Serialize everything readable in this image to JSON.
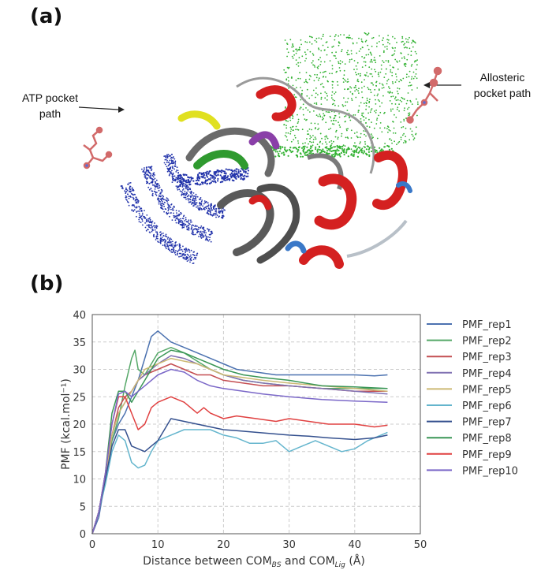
{
  "panel_a": {
    "label": "(a)",
    "annotations": {
      "atp_line1": "ATP pocket",
      "atp_line2": "path",
      "allo_line1": "Allosteric",
      "allo_line2": "pocket path"
    },
    "colors": {
      "atp_path": "#2233aa",
      "allosteric_path": "#33b233",
      "helix": "#d42020",
      "coil": "#9a9a9a"
    }
  },
  "panel_b": {
    "label": "(b)"
  },
  "chart_data": {
    "type": "line",
    "xlabel_parts": [
      "Distance between COM",
      "BS",
      " and COM",
      "Lig",
      " (Å)"
    ],
    "ylabel": "PMF (kcal.mol⁻¹)",
    "xlim": [
      0,
      50
    ],
    "ylim": [
      0,
      40
    ],
    "xticks": [
      "0",
      "10",
      "20",
      "30",
      "40",
      "50"
    ],
    "yticks": [
      "0",
      "5",
      "10",
      "15",
      "20",
      "25",
      "30",
      "35",
      "40"
    ],
    "grid": true,
    "legend_position": "right",
    "series": [
      {
        "name": "PMF_rep1",
        "color": "#4c72b0",
        "x": [
          0,
          1,
          2,
          3,
          4,
          5,
          6,
          7,
          8,
          9,
          10,
          12,
          14,
          16,
          18,
          20,
          22,
          25,
          28,
          30,
          33,
          36,
          40,
          43,
          45
        ],
        "y": [
          0,
          3,
          10,
          17,
          20,
          22,
          25,
          28,
          32,
          36,
          37,
          35,
          34,
          33,
          32,
          31,
          30,
          29.5,
          29,
          29,
          29,
          29,
          29,
          28.8,
          29
        ]
      },
      {
        "name": "PMF_rep2",
        "color": "#55a868",
        "x": [
          0,
          1,
          2,
          3,
          4,
          5,
          6,
          6.5,
          7,
          8,
          9,
          10,
          12,
          14,
          16,
          18,
          20,
          23,
          26,
          30,
          35,
          40,
          45
        ],
        "y": [
          0,
          4,
          10,
          17,
          21,
          27,
          32,
          33.5,
          30,
          29,
          31,
          33,
          34,
          33,
          31.5,
          30,
          29,
          28,
          27.5,
          27,
          26.5,
          26.5,
          26.5
        ]
      },
      {
        "name": "PMF_rep3",
        "color": "#c44e52",
        "x": [
          0,
          1,
          2,
          3,
          4,
          5,
          6,
          7,
          8,
          10,
          12,
          14,
          16,
          18,
          20,
          23,
          26,
          30,
          35,
          40,
          45
        ],
        "y": [
          0,
          4,
          10,
          18,
          23,
          25,
          26,
          28,
          29,
          30,
          31,
          30,
          29,
          29,
          28,
          27.5,
          27,
          27,
          26.5,
          26,
          26
        ]
      },
      {
        "name": "PMF_rep4",
        "color": "#8172b2",
        "x": [
          0,
          1,
          2,
          3,
          4,
          5,
          6,
          7,
          8,
          10,
          12,
          14,
          16,
          18,
          20,
          23,
          26,
          30,
          35,
          40,
          45
        ],
        "y": [
          0,
          4,
          10,
          18,
          22,
          24,
          26,
          28,
          29,
          31,
          32.5,
          32,
          31,
          30,
          29,
          28,
          27.5,
          27,
          26.5,
          26,
          25.5
        ]
      },
      {
        "name": "PMF_rep5",
        "color": "#ccb974",
        "x": [
          0,
          1,
          2,
          3,
          4,
          5,
          6,
          7,
          8,
          10,
          12,
          14,
          16,
          18,
          20,
          23,
          26,
          30,
          35,
          40,
          45
        ],
        "y": [
          0,
          4,
          10,
          18,
          22,
          24,
          26,
          28,
          30,
          31,
          32,
          31.5,
          31,
          30,
          29,
          28.5,
          28,
          27.5,
          27,
          26.5,
          26
        ]
      },
      {
        "name": "PMF_rep6",
        "color": "#64b5cd",
        "x": [
          0,
          1,
          2,
          3,
          4,
          5,
          6,
          7,
          8,
          9,
          10,
          12,
          14,
          16,
          18,
          20,
          22,
          24,
          26,
          28,
          30,
          32,
          34,
          36,
          38,
          40,
          42,
          44,
          45
        ],
        "y": [
          0,
          4,
          9,
          15,
          18,
          17,
          13,
          12,
          12.5,
          15,
          17,
          18,
          19,
          19,
          19,
          18,
          17.5,
          16.5,
          16.5,
          17,
          15,
          16,
          17,
          16,
          15,
          15.5,
          17,
          18,
          18.5
        ]
      },
      {
        "name": "PMF_rep7",
        "color": "#34508e",
        "x": [
          0,
          1,
          2,
          3,
          4,
          5,
          6,
          7,
          8,
          9,
          10,
          11,
          12,
          14,
          16,
          18,
          20,
          22,
          25,
          28,
          30,
          33,
          36,
          40,
          43,
          45
        ],
        "y": [
          0,
          4,
          10,
          16,
          19,
          19,
          16,
          15.5,
          15,
          16,
          17,
          19,
          21,
          20.5,
          20,
          19.5,
          19,
          18.8,
          18.5,
          18.2,
          18,
          17.8,
          17.5,
          17.2,
          17.5,
          18
        ]
      },
      {
        "name": "PMF_rep8",
        "color": "#3a9656",
        "x": [
          0,
          1,
          2,
          3,
          4,
          5,
          6,
          7,
          8,
          9,
          10,
          12,
          14,
          16,
          18,
          20,
          23,
          26,
          30,
          35,
          40,
          45
        ],
        "y": [
          0,
          4,
          11,
          22,
          26,
          26,
          24,
          26,
          28,
          30,
          32,
          33.5,
          33,
          32,
          31,
          30,
          29,
          28.5,
          28,
          27,
          26.8,
          26.5
        ]
      },
      {
        "name": "PMF_rep9",
        "color": "#e04040",
        "x": [
          0,
          1,
          2,
          3,
          4,
          5,
          6,
          7,
          8,
          9,
          10,
          12,
          14,
          16,
          17,
          18,
          20,
          22,
          25,
          28,
          30,
          33,
          36,
          40,
          43,
          45
        ],
        "y": [
          0,
          4,
          11,
          20,
          25,
          25,
          22,
          19,
          20,
          23,
          24,
          25,
          24,
          22,
          23,
          22,
          21,
          21.5,
          21,
          20.5,
          21,
          20.5,
          20,
          20,
          19.5,
          19.8
        ]
      },
      {
        "name": "PMF_rep10",
        "color": "#7b68c8",
        "x": [
          0,
          1,
          2,
          3,
          4,
          5,
          6,
          7,
          8,
          10,
          12,
          14,
          16,
          18,
          20,
          23,
          26,
          30,
          35,
          40,
          45
        ],
        "y": [
          0,
          4,
          11,
          20,
          25.5,
          26,
          25,
          26,
          27,
          29,
          30,
          29.5,
          28,
          27,
          26.5,
          26,
          25.5,
          25,
          24.5,
          24.2,
          24
        ]
      }
    ]
  }
}
